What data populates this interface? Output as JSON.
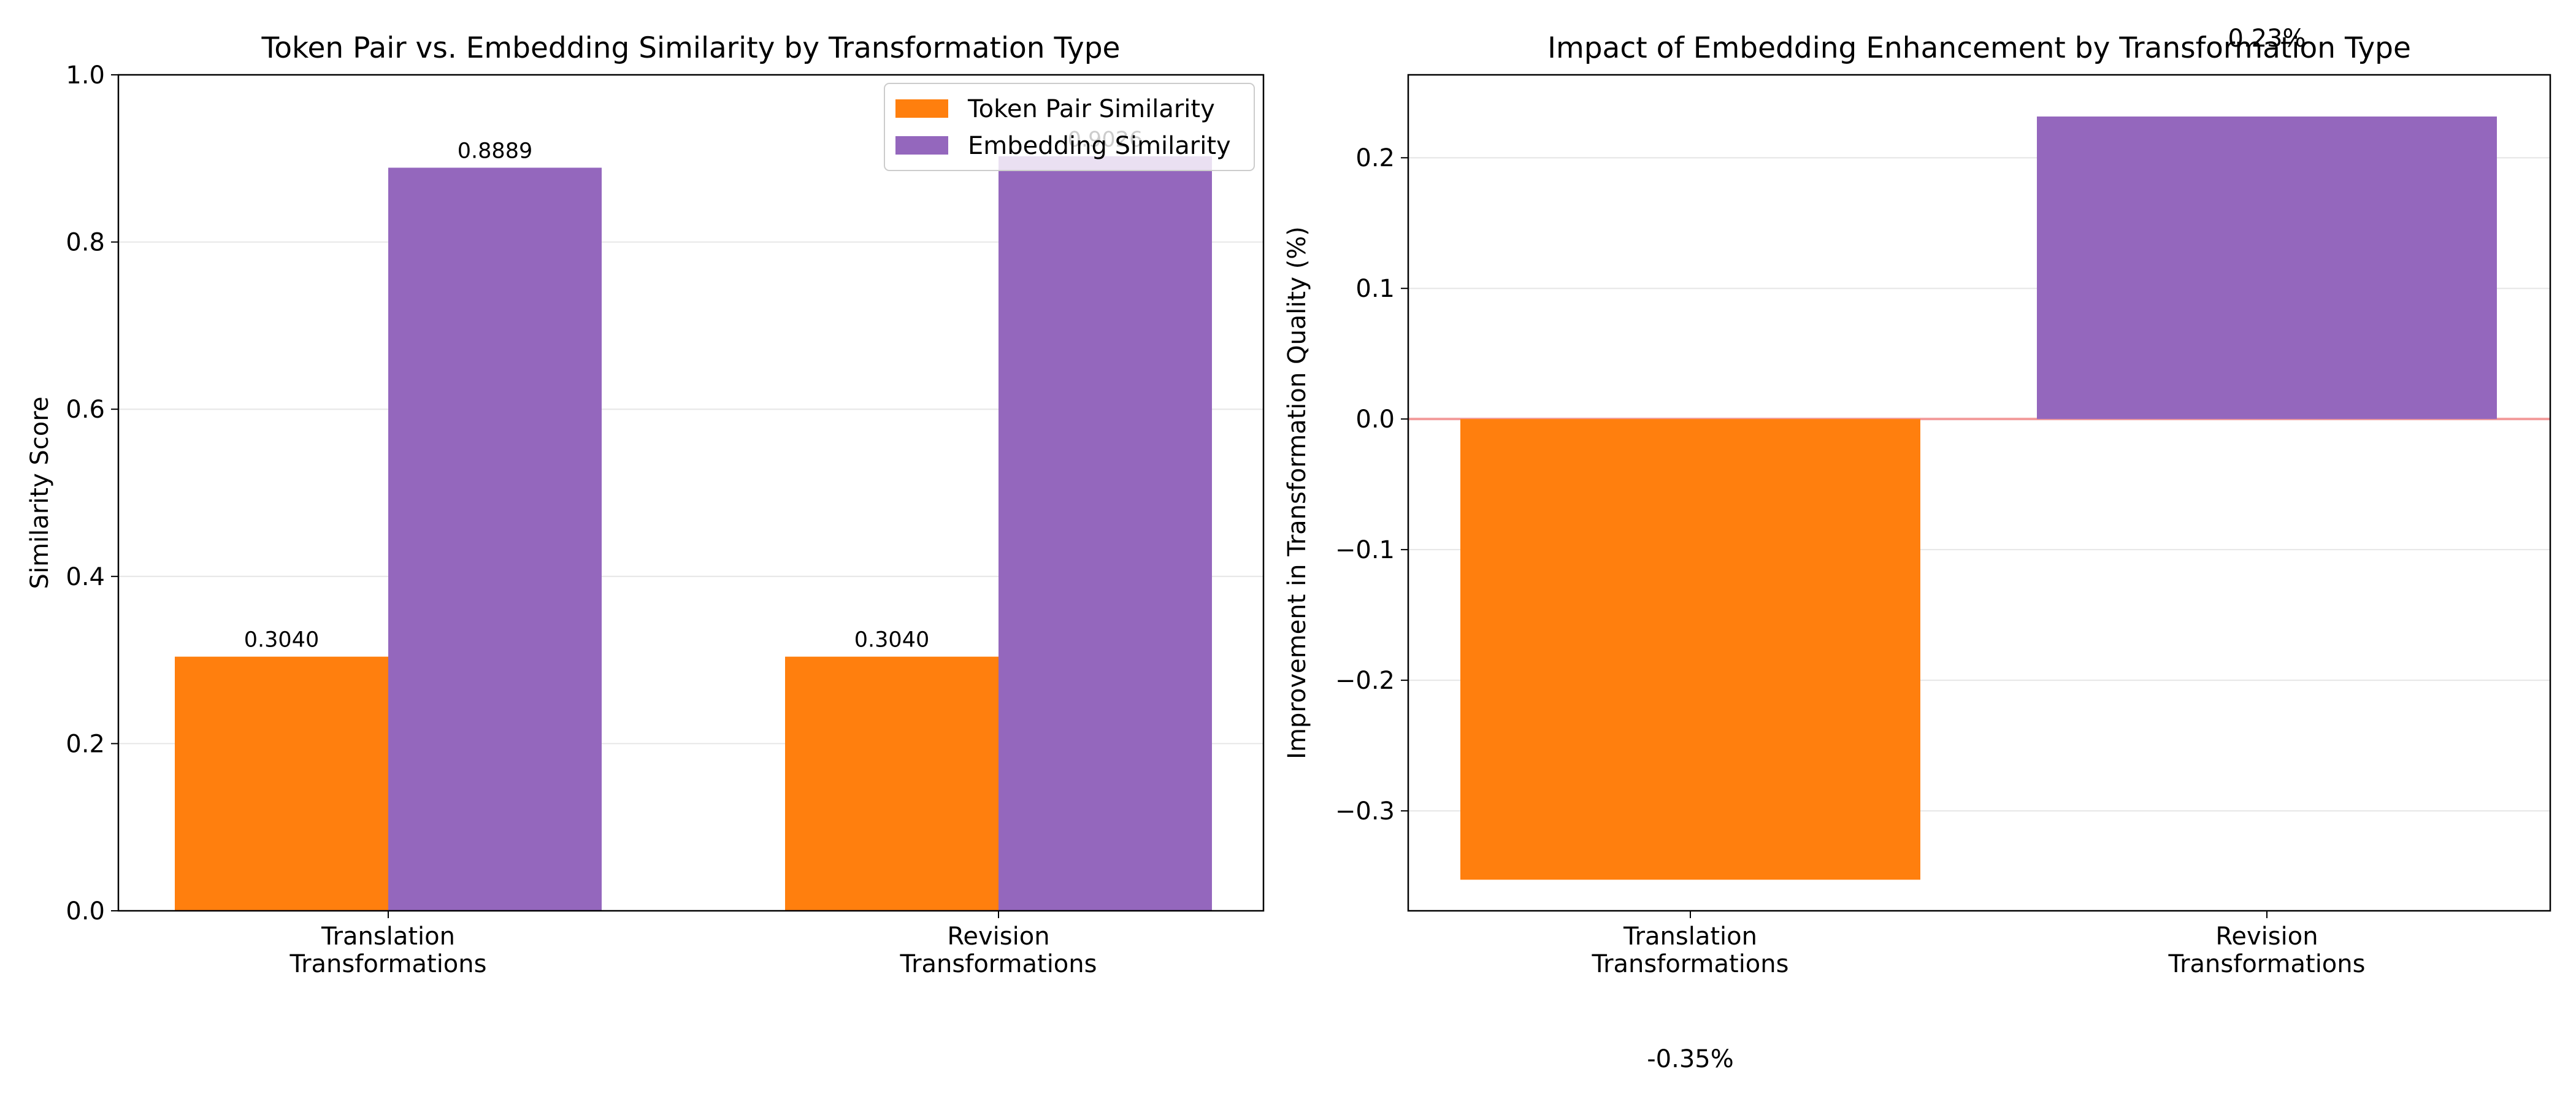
{
  "colors": {
    "token": "#ff7f0e",
    "embedding": "#9467bd",
    "zero_line": "#f29b9b",
    "grid": "#e6e6e6"
  },
  "chart_data": [
    {
      "type": "bar",
      "title": "Token Pair vs. Embedding Similarity by Transformation Type",
      "xlabel": "",
      "ylabel": "Similarity Score",
      "ylim": [
        0,
        1.0
      ],
      "yticks": [
        "0.0",
        "0.2",
        "0.4",
        "0.6",
        "0.8",
        "1.0"
      ],
      "grid": true,
      "legend_position": "top-right",
      "categories": [
        [
          "Translation",
          "Transformations"
        ],
        [
          "Revision",
          "Transformations"
        ]
      ],
      "series": [
        {
          "name": "Token Pair Similarity",
          "values": [
            0.304,
            0.304
          ],
          "labels": [
            "0.3040",
            "0.3040"
          ]
        },
        {
          "name": "Embedding Similarity",
          "values": [
            0.8889,
            0.9026
          ],
          "labels": [
            "0.8889",
            "0.9026"
          ]
        }
      ]
    },
    {
      "type": "bar",
      "title": "Impact of Embedding Enhancement by Transformation Type",
      "xlabel": "",
      "ylabel": "Improvement in Transformation Quality (%)",
      "ylim": [
        -0.3765,
        0.2635
      ],
      "yticks": [
        "−0.3",
        "−0.2",
        "−0.1",
        "0.0",
        "0.1",
        "0.2"
      ],
      "grid": true,
      "categories": [
        [
          "Translation",
          "Transformations"
        ],
        [
          "Revision",
          "Transformations"
        ]
      ],
      "values": [
        -0.3527,
        0.2316
      ],
      "labels": [
        "-0.35%",
        "0.23%"
      ]
    }
  ]
}
